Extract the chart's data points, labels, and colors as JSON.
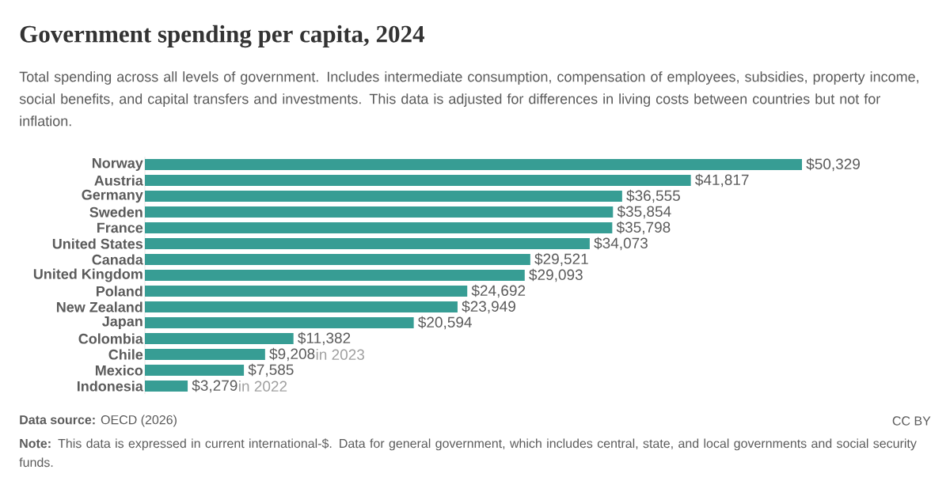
{
  "chart_data": {
    "type": "bar",
    "orientation": "horizontal",
    "title": "Government spending per capita, 2024",
    "subtitle": "Total spending across all levels of government. Includes intermediate consumption, compensation of employees, subsidies, property income, social benefits, and capital transfers and investments. This data is adjusted for differences in living costs between countries but not for inflation.",
    "categories": [
      "Norway",
      "Austria",
      "Germany",
      "Sweden",
      "France",
      "United States",
      "Canada",
      "United Kingdom",
      "Poland",
      "New Zealand",
      "Japan",
      "Colombia",
      "Chile",
      "Mexico",
      "Indonesia"
    ],
    "values": [
      50329,
      41817,
      36555,
      35854,
      35798,
      34073,
      29521,
      29093,
      24692,
      23949,
      20594,
      11382,
      9208,
      7585,
      3279
    ],
    "value_labels": [
      "$50,329",
      "$41,817",
      "$36,555",
      "$35,854",
      "$35,798",
      "$34,073",
      "$29,521",
      "$29,093",
      "$24,692",
      "$23,949",
      "$20,594",
      "$11,382",
      "$9,208",
      "$7,585",
      "$3,279"
    ],
    "color": "#379d94",
    "annotations": [
      "in 2023",
      "in 2022",
      "**Data source:** OECD (2026)",
      "CC BY",
      "**Note:** This data is expressed in current international-$. Data for general government, which includes central, state, and local governments and social security funds."
    ]
  }
}
